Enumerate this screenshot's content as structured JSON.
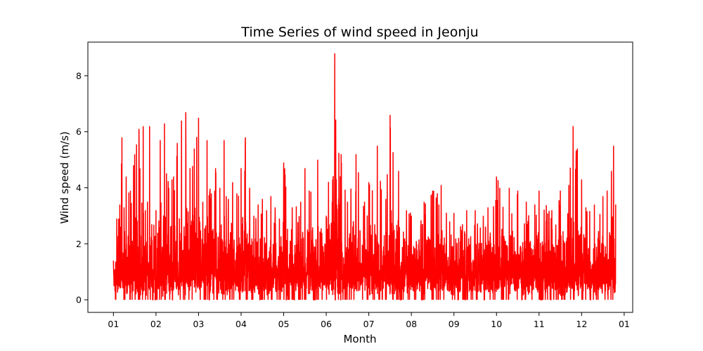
{
  "chart_data": {
    "type": "line",
    "title": "Time Series of wind speed in Jeonju",
    "xlabel": "Month",
    "ylabel": "Wind speed (m/s)",
    "x_tick_labels": [
      "01",
      "02",
      "03",
      "04",
      "05",
      "06",
      "07",
      "08",
      "09",
      "10",
      "11",
      "12",
      "01"
    ],
    "y_ticks": [
      0,
      2,
      4,
      6,
      8
    ],
    "xlim_months": [
      -0.6,
      12.2
    ],
    "ylim": [
      -0.45,
      9.2
    ],
    "grid": false,
    "line_color": "#ff0000",
    "series": [
      {
        "name": "",
        "x_month": [
          0.0,
          0.08,
          0.15,
          0.2,
          0.25,
          0.3,
          0.4,
          0.5,
          0.6,
          0.7,
          0.75,
          0.8,
          0.85,
          0.9,
          1.0,
          1.1,
          1.2,
          1.3,
          1.5,
          1.6,
          1.7,
          1.8,
          1.9,
          2.0,
          2.1,
          2.2,
          2.3,
          2.4,
          2.5,
          2.6,
          2.65,
          2.7,
          2.8,
          2.9,
          3.0,
          3.1,
          3.2,
          3.3,
          3.4,
          3.5,
          3.6,
          3.7,
          3.8,
          3.9,
          4.0,
          4.2,
          4.4,
          4.5,
          4.6,
          4.8,
          5.0,
          5.2,
          5.35,
          5.5,
          5.7,
          5.9,
          6.0,
          6.2,
          6.4,
          6.5,
          6.7,
          7.0,
          7.3,
          7.5,
          7.7,
          7.9,
          8.0,
          8.2,
          8.3,
          8.5,
          8.8,
          9.0,
          9.3,
          9.5,
          9.7,
          9.9,
          10.0,
          10.3,
          10.5,
          10.7,
          10.8,
          10.9,
          11.0,
          11.1,
          11.3,
          11.5,
          11.6,
          11.7,
          11.75,
          11.8
        ],
        "y": [
          1.4,
          2.9,
          3.4,
          5.8,
          3.3,
          4.4,
          3.9,
          5.2,
          6.1,
          6.2,
          3.2,
          3.5,
          6.2,
          2.7,
          3.2,
          5.7,
          6.3,
          4.0,
          5.6,
          6.4,
          6.7,
          4.7,
          5.4,
          6.5,
          3.5,
          5.7,
          3.8,
          4.7,
          4.0,
          5.7,
          3.7,
          3.6,
          4.2,
          3.8,
          4.7,
          5.8,
          4.0,
          3.0,
          3.4,
          3.6,
          3.2,
          3.7,
          3.3,
          2.9,
          4.9,
          3.3,
          3.5,
          4.7,
          3.9,
          5.0,
          3.0,
          8.8,
          5.2,
          3.5,
          5.2,
          3.5,
          4.2,
          5.5,
          3.6,
          6.6,
          4.6,
          3.0,
          3.5,
          3.9,
          4.1,
          2.8,
          3.1,
          2.7,
          3.2,
          3.2,
          3.3,
          4.4,
          4.0,
          3.9,
          3.5,
          3.4,
          3.9,
          3.2,
          3.9,
          4.1,
          6.2,
          5.4,
          4.3,
          3.3,
          3.4,
          3.7,
          3.9,
          4.6,
          5.5,
          3.4
        ]
      }
    ]
  }
}
